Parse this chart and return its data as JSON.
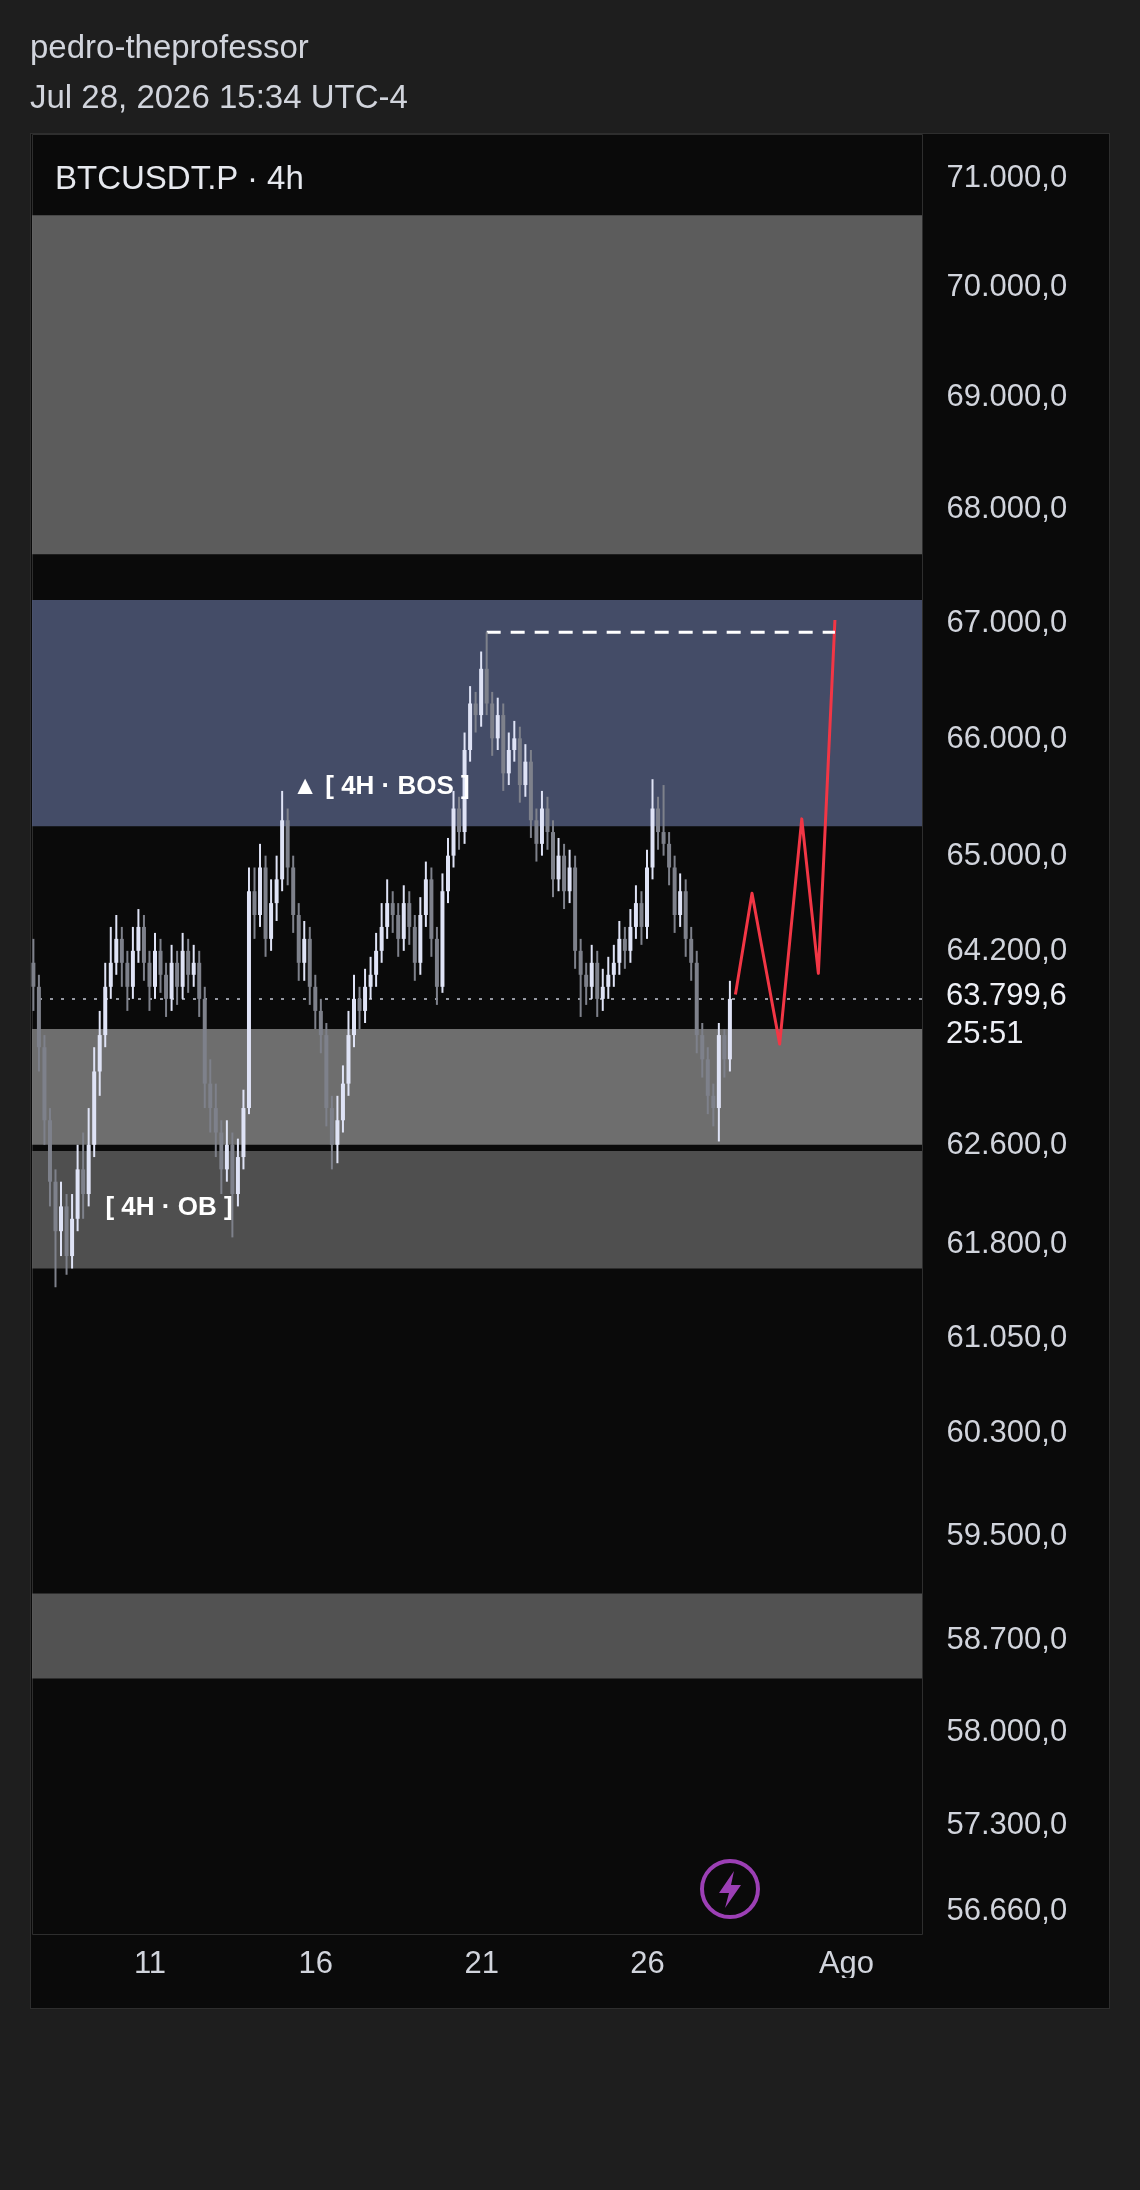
{
  "chart_data": {
    "type": "candlestick",
    "title": "pedro-theprofessor",
    "subtitle": "Jul 28, 2026 15:34 UTC-4",
    "annotations": [
      "BTCUSDT.P · 4h",
      "▲ [ 4H · BOS ]",
      "[ 4H · OB ]"
    ],
    "x": [
      "2026-07-07T12:00",
      "2026-07-07T16:00",
      "2026-07-07T20:00",
      "2026-07-08T00:00",
      "2026-07-08T04:00",
      "2026-07-08T08:00",
      "2026-07-08T12:00",
      "2026-07-08T16:00",
      "2026-07-08T20:00",
      "2026-07-09T00:00",
      "2026-07-09T04:00",
      "2026-07-09T08:00",
      "2026-07-09T12:00",
      "2026-07-09T16:00",
      "2026-07-09T20:00",
      "2026-07-10T00:00",
      "2026-07-10T04:00",
      "2026-07-10T08:00",
      "2026-07-10T12:00",
      "2026-07-10T16:00",
      "2026-07-10T20:00",
      "2026-07-11T00:00",
      "2026-07-11T04:00",
      "2026-07-11T08:00",
      "2026-07-11T12:00",
      "2026-07-11T16:00",
      "2026-07-11T20:00",
      "2026-07-12T00:00",
      "2026-07-12T04:00",
      "2026-07-12T08:00",
      "2026-07-12T12:00",
      "2026-07-12T16:00",
      "2026-07-12T20:00",
      "2026-07-13T00:00",
      "2026-07-13T04:00",
      "2026-07-13T08:00",
      "2026-07-13T12:00",
      "2026-07-13T16:00",
      "2026-07-13T20:00",
      "2026-07-14T00:00",
      "2026-07-14T04:00",
      "2026-07-14T08:00",
      "2026-07-14T12:00",
      "2026-07-14T16:00",
      "2026-07-14T20:00",
      "2026-07-15T00:00",
      "2026-07-15T04:00",
      "2026-07-15T08:00",
      "2026-07-15T12:00",
      "2026-07-15T16:00",
      "2026-07-15T20:00",
      "2026-07-16T00:00",
      "2026-07-16T04:00",
      "2026-07-16T08:00",
      "2026-07-16T12:00",
      "2026-07-16T16:00",
      "2026-07-16T20:00",
      "2026-07-17T00:00",
      "2026-07-17T04:00",
      "2026-07-17T08:00",
      "2026-07-17T12:00",
      "2026-07-17T16:00",
      "2026-07-17T20:00",
      "2026-07-18T00:00",
      "2026-07-18T04:00",
      "2026-07-18T08:00",
      "2026-07-18T12:00",
      "2026-07-18T16:00",
      "2026-07-18T20:00",
      "2026-07-19T00:00",
      "2026-07-19T04:00",
      "2026-07-19T08:00",
      "2026-07-19T12:00",
      "2026-07-19T16:00",
      "2026-07-19T20:00",
      "2026-07-20T00:00",
      "2026-07-20T04:00",
      "2026-07-20T08:00",
      "2026-07-20T12:00",
      "2026-07-20T16:00",
      "2026-07-20T20:00",
      "2026-07-21T00:00",
      "2026-07-21T04:00",
      "2026-07-21T08:00",
      "2026-07-21T12:00",
      "2026-07-21T16:00",
      "2026-07-21T20:00",
      "2026-07-22T00:00",
      "2026-07-22T04:00",
      "2026-07-22T08:00",
      "2026-07-22T12:00",
      "2026-07-22T16:00",
      "2026-07-22T20:00",
      "2026-07-23T00:00",
      "2026-07-23T04:00",
      "2026-07-23T08:00",
      "2026-07-23T12:00",
      "2026-07-23T16:00",
      "2026-07-23T20:00",
      "2026-07-24T00:00",
      "2026-07-24T04:00",
      "2026-07-24T08:00",
      "2026-07-24T12:00",
      "2026-07-24T16:00",
      "2026-07-24T20:00",
      "2026-07-25T00:00",
      "2026-07-25T04:00",
      "2026-07-25T08:00",
      "2026-07-25T12:00",
      "2026-07-25T16:00",
      "2026-07-25T20:00",
      "2026-07-26T00:00",
      "2026-07-26T04:00",
      "2026-07-26T08:00",
      "2026-07-26T12:00",
      "2026-07-26T16:00",
      "2026-07-26T20:00",
      "2026-07-27T00:00",
      "2026-07-27T04:00",
      "2026-07-27T08:00",
      "2026-07-27T12:00",
      "2026-07-27T16:00",
      "2026-07-27T20:00",
      "2026-07-28T00:00",
      "2026-07-28T04:00",
      "2026-07-28T08:00",
      "2026-07-28T12:00"
    ],
    "ohlc": [
      [
        64100,
        64300,
        63700,
        63900
      ],
      [
        63900,
        64000,
        63200,
        63400
      ],
      [
        63400,
        63500,
        62600,
        62800
      ],
      [
        62800,
        62900,
        62100,
        62300
      ],
      [
        62300,
        62400,
        61450,
        61900
      ],
      [
        61900,
        62300,
        61700,
        62100
      ],
      [
        62100,
        62200,
        61550,
        61700
      ],
      [
        61700,
        62200,
        61600,
        62000
      ],
      [
        62000,
        62600,
        61900,
        62400
      ],
      [
        62400,
        62700,
        62000,
        62200
      ],
      [
        62200,
        62900,
        62100,
        62600
      ],
      [
        62600,
        63400,
        62500,
        63200
      ],
      [
        63200,
        63700,
        63000,
        63500
      ],
      [
        63500,
        64100,
        63400,
        63900
      ],
      [
        63900,
        64400,
        63800,
        64100
      ],
      [
        64100,
        64500,
        64000,
        64300
      ],
      [
        64300,
        64400,
        63900,
        64100
      ],
      [
        64100,
        64200,
        63700,
        63900
      ],
      [
        63900,
        64400,
        63800,
        64200
      ],
      [
        64200,
        64550,
        64100,
        64400
      ],
      [
        64400,
        64500,
        63950,
        64100
      ],
      [
        64100,
        64200,
        63700,
        63900
      ],
      [
        63900,
        64350,
        63800,
        64200
      ],
      [
        64200,
        64300,
        63850,
        64000
      ],
      [
        64000,
        64100,
        63650,
        63800
      ],
      [
        63800,
        64250,
        63700,
        64100
      ],
      [
        64100,
        64200,
        63750,
        63900
      ],
      [
        63900,
        64350,
        63800,
        64200
      ],
      [
        64200,
        64300,
        63850,
        64000
      ],
      [
        64000,
        64250,
        63900,
        64100
      ],
      [
        64100,
        64200,
        63650,
        63800
      ],
      [
        63800,
        63900,
        62900,
        63100
      ],
      [
        63100,
        63300,
        62700,
        62900
      ],
      [
        62900,
        63100,
        62500,
        62700
      ],
      [
        62700,
        62800,
        62200,
        62400
      ],
      [
        62400,
        62800,
        62300,
        62600
      ],
      [
        62600,
        62700,
        61850,
        62200
      ],
      [
        62200,
        62650,
        62100,
        62500
      ],
      [
        62500,
        63050,
        62400,
        62900
      ],
      [
        62900,
        64900,
        62850,
        64700
      ],
      [
        64700,
        64900,
        64300,
        64500
      ],
      [
        64500,
        65100,
        64400,
        64900
      ],
      [
        64900,
        65000,
        64150,
        64300
      ],
      [
        64300,
        64800,
        64200,
        64600
      ],
      [
        64600,
        65000,
        64450,
        64800
      ],
      [
        64800,
        65550,
        64700,
        65300
      ],
      [
        65300,
        65400,
        64750,
        64900
      ],
      [
        64900,
        65000,
        64350,
        64500
      ],
      [
        64500,
        64600,
        63950,
        64100
      ],
      [
        64100,
        64450,
        63950,
        64300
      ],
      [
        64300,
        64400,
        63750,
        63900
      ],
      [
        63900,
        64000,
        63550,
        63700
      ],
      [
        63700,
        63800,
        63350,
        63500
      ],
      [
        63500,
        63600,
        62750,
        62900
      ],
      [
        62900,
        63000,
        62400,
        62600
      ],
      [
        62600,
        63000,
        62450,
        62800
      ],
      [
        62800,
        63250,
        62700,
        63100
      ],
      [
        63100,
        63700,
        63000,
        63500
      ],
      [
        63500,
        64000,
        63400,
        63800
      ],
      [
        63800,
        63900,
        63550,
        63700
      ],
      [
        63700,
        64050,
        63600,
        63900
      ],
      [
        63900,
        64150,
        63800,
        64000
      ],
      [
        64000,
        64350,
        63900,
        64200
      ],
      [
        64200,
        64600,
        64100,
        64400
      ],
      [
        64400,
        64800,
        64300,
        64600
      ],
      [
        64600,
        64700,
        64350,
        64500
      ],
      [
        64500,
        64600,
        64150,
        64300
      ],
      [
        64300,
        64750,
        64200,
        64600
      ],
      [
        64600,
        64700,
        64250,
        64400
      ],
      [
        64400,
        64500,
        63950,
        64100
      ],
      [
        64100,
        64650,
        64000,
        64500
      ],
      [
        64500,
        64950,
        64400,
        64800
      ],
      [
        64800,
        64900,
        64150,
        64300
      ],
      [
        64300,
        64400,
        63750,
        63900
      ],
      [
        63900,
        64850,
        63850,
        64700
      ],
      [
        64700,
        65150,
        64600,
        65000
      ],
      [
        65000,
        65550,
        64900,
        65400
      ],
      [
        65400,
        65500,
        65050,
        65200
      ],
      [
        65200,
        66050,
        65100,
        65900
      ],
      [
        65900,
        66450,
        65800,
        66300
      ],
      [
        66300,
        66400,
        66050,
        66200
      ],
      [
        66200,
        66750,
        66100,
        66600
      ],
      [
        66600,
        66917,
        66200,
        66300
      ],
      [
        66300,
        66400,
        65850,
        66000
      ],
      [
        66000,
        66350,
        65900,
        66200
      ],
      [
        66200,
        66300,
        65550,
        65700
      ],
      [
        65700,
        66050,
        65600,
        65900
      ],
      [
        65900,
        66150,
        65800,
        66000
      ],
      [
        66000,
        66100,
        65450,
        65600
      ],
      [
        65600,
        65950,
        65500,
        65800
      ],
      [
        65800,
        65900,
        65150,
        65300
      ],
      [
        65300,
        65400,
        64950,
        65100
      ],
      [
        65100,
        65550,
        65000,
        65400
      ],
      [
        65400,
        65500,
        65050,
        65200
      ],
      [
        65200,
        65300,
        64650,
        64800
      ],
      [
        64800,
        65150,
        64700,
        65000
      ],
      [
        65000,
        65100,
        64550,
        64700
      ],
      [
        64700,
        65050,
        64600,
        64900
      ],
      [
        64900,
        65000,
        64050,
        64200
      ],
      [
        64200,
        64300,
        63650,
        64000
      ],
      [
        64000,
        64100,
        63750,
        63900
      ],
      [
        63900,
        64250,
        63800,
        64100
      ],
      [
        64100,
        64200,
        63650,
        63800
      ],
      [
        63800,
        64050,
        63700,
        63900
      ],
      [
        63900,
        64150,
        63800,
        64000
      ],
      [
        64000,
        64250,
        63900,
        64100
      ],
      [
        64100,
        64450,
        64000,
        64300
      ],
      [
        64300,
        64400,
        64050,
        64200
      ],
      [
        64200,
        64550,
        64100,
        64400
      ],
      [
        64400,
        64750,
        64300,
        64600
      ],
      [
        64600,
        64700,
        64250,
        64400
      ],
      [
        64400,
        65050,
        64300,
        64900
      ],
      [
        64900,
        65650,
        64800,
        65400
      ],
      [
        65400,
        65500,
        65050,
        65200
      ],
      [
        65200,
        65600,
        65000,
        65100
      ],
      [
        65100,
        65200,
        64750,
        64900
      ],
      [
        64900,
        65000,
        64350,
        64500
      ],
      [
        64500,
        64850,
        64400,
        64700
      ],
      [
        64700,
        64800,
        64150,
        64300
      ],
      [
        64300,
        64400,
        63950,
        64100
      ],
      [
        64100,
        64200,
        63350,
        63500
      ],
      [
        63500,
        63600,
        63150,
        63300
      ],
      [
        63300,
        63400,
        62850,
        63000
      ],
      [
        63000,
        63100,
        62750,
        62900
      ],
      [
        62900,
        63600,
        62627,
        63500
      ],
      [
        63500,
        63550,
        63150,
        63300
      ],
      [
        63300,
        63950,
        63200,
        63799.6
      ]
    ],
    "series": [
      {
        "type": "line",
        "color": "#f23645",
        "x": [
          "2026-07-28T16:00",
          "2026-07-29T04:00",
          "2026-07-30T00:00",
          "2026-07-30T16:00",
          "2026-07-31T04:00",
          "2026-07-31T16:00"
        ],
        "values": [
          63836,
          64682,
          63426,
          65312,
          64012,
          67024
        ]
      },
      {
        "type": "line",
        "color": "#ffffff",
        "line_style": "dashed",
        "x": [
          "2026-07-21T04:00",
          "2026-07-31T16:00"
        ],
        "values": [
          66917,
          66917
        ]
      }
    ],
    "bands": [
      {
        "axis": "y",
        "from": 67600,
        "to": 70650,
        "color": "#6b6b6b"
      },
      {
        "axis": "y",
        "from": 65250,
        "to": 67200,
        "color": "#4f5878"
      },
      {
        "axis": "y",
        "from": 62600,
        "to": 63550,
        "color": "#808080"
      },
      {
        "axis": "y",
        "from": 61600,
        "to": 62550,
        "color": "#5c5c5c"
      },
      {
        "axis": "y",
        "from": 58400,
        "to": 59050,
        "color": "#5f5f5f"
      }
    ],
    "ref_lines": [
      {
        "axis": "y",
        "value": 63799.6,
        "label": "63.799,6\n25:51",
        "color": "#9598a1",
        "line_style": "dotted"
      }
    ],
    "log": "y",
    "grid": false,
    "xlim": [
      "2026-07-07T11:00",
      "2026-08-03T07:00"
    ],
    "xticks": [
      {
        "value": "2026-07-11T00:00",
        "label": "11"
      },
      {
        "value": "2026-07-16T00:00",
        "label": "16"
      },
      {
        "value": "2026-07-21T00:00",
        "label": "21"
      },
      {
        "value": "2026-07-26T00:00",
        "label": "26"
      },
      {
        "value": "2026-08-01T00:00",
        "label": "Ago"
      }
    ],
    "ylim": [
      56490,
      71400
    ],
    "yticks": [
      {
        "value": 71000,
        "label": "71.000,0"
      },
      {
        "value": 70000,
        "label": "70.000,0"
      },
      {
        "value": 69000,
        "label": "69.000,0"
      },
      {
        "value": 68000,
        "label": "68.000,0"
      },
      {
        "value": 67000,
        "label": "67.000,0"
      },
      {
        "value": 66000,
        "label": "66.000,0"
      },
      {
        "value": 65000,
        "label": "65.000,0"
      },
      {
        "value": 64200,
        "label": "64.200,0"
      },
      {
        "value": 62600,
        "label": "62.600,0"
      },
      {
        "value": 61800,
        "label": "61.800,0"
      },
      {
        "value": 61050,
        "label": "61.050,0"
      },
      {
        "value": 60300,
        "label": "60.300,0"
      },
      {
        "value": 59500,
        "label": "59.500,0"
      },
      {
        "value": 58700,
        "label": "58.700,0"
      },
      {
        "value": 58000,
        "label": "58.000,0"
      },
      {
        "value": 57300,
        "label": "57.300,0"
      },
      {
        "value": 56660,
        "label": "56.660,0"
      }
    ]
  }
}
